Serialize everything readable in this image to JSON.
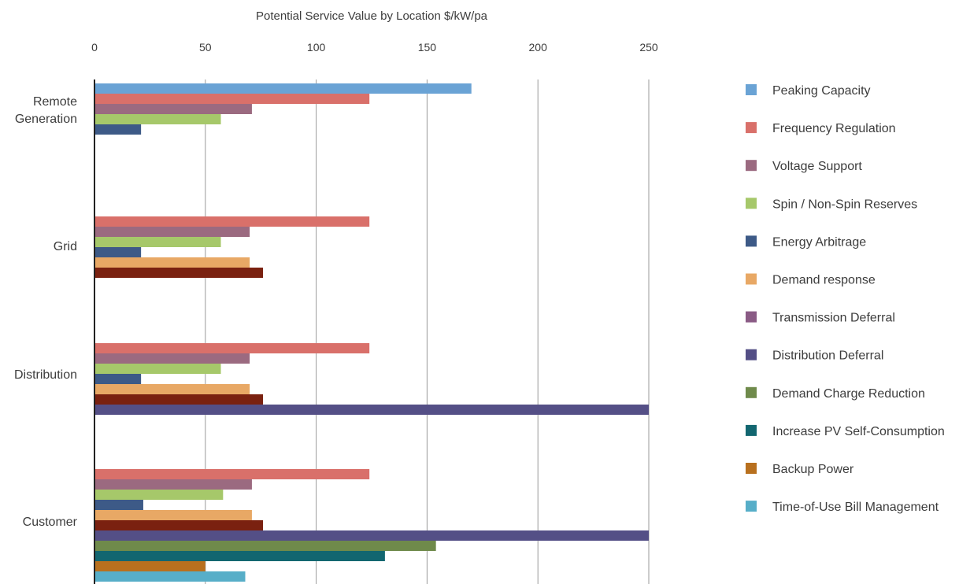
{
  "chart_data": {
    "type": "bar",
    "orientation": "horizontal",
    "title": "Potential Service Value by Location $/kW/pa",
    "xlabel": "Potential Service Value by Location $/kW/pa",
    "ylabel": "",
    "xlim": [
      0,
      250
    ],
    "x_ticks": [
      0,
      50,
      100,
      150,
      200,
      250
    ],
    "x_axis_position": "top",
    "grid": "vertical",
    "legend_position": "right",
    "categories": [
      "Remote Generation",
      "Grid",
      "Distribution",
      "Customer"
    ],
    "category_labels": [
      [
        "Remote",
        "Generation"
      ],
      [
        "Grid"
      ],
      [
        "Distribution"
      ],
      [
        "Customer"
      ]
    ],
    "series": [
      {
        "name": "Peaking Capacity",
        "color": "#6aa3d5",
        "values": [
          170,
          null,
          null,
          null
        ]
      },
      {
        "name": "Frequency Regulation",
        "color": "#d9706a",
        "values": [
          124,
          124,
          124,
          124
        ]
      },
      {
        "name": "Voltage Support",
        "color": "#9b6a80",
        "values": [
          71,
          70,
          70,
          71
        ]
      },
      {
        "name": "Spin / Non-Spin Reserves",
        "color": "#a6c86a",
        "values": [
          57,
          57,
          57,
          58
        ]
      },
      {
        "name": "Energy Arbitrage",
        "color": "#3d5a87",
        "values": [
          21,
          21,
          21,
          22
        ]
      },
      {
        "name": "Demand response",
        "color": "#e8a865",
        "values": [
          null,
          70,
          70,
          71
        ]
      },
      {
        "name": "Transmission Deferral",
        "color": "#8a5b85",
        "values": [
          null,
          76,
          76,
          76
        ]
      },
      {
        "name": "Distribution Deferral",
        "color": "#544f86",
        "values": [
          null,
          null,
          250,
          250
        ]
      },
      {
        "name": "Demand Charge Reduction",
        "color": "#6f8a4b",
        "values": [
          null,
          null,
          null,
          154
        ]
      },
      {
        "name": "Increase PV Self-Consumption",
        "color": "#126670",
        "values": [
          null,
          null,
          null,
          131
        ]
      },
      {
        "name": "Backup Power",
        "color": "#b8701e",
        "values": [
          null,
          null,
          null,
          50
        ]
      },
      {
        "name": "Time-of-Use Bill Management",
        "color": "#57aec8",
        "values": [
          null,
          null,
          null,
          68
        ]
      }
    ],
    "bar_overrides": {
      "Transmission Deferral": "#7a2110"
    }
  }
}
